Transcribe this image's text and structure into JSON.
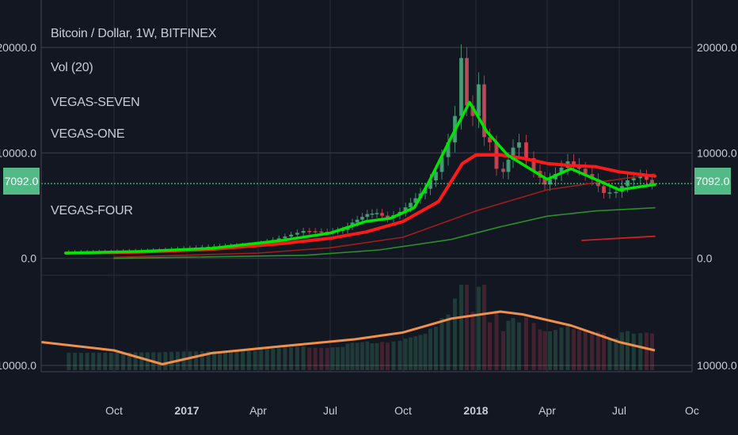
{
  "header": {
    "symbol": "Bitcoin / Dollar, 1W, BITFINEX",
    "indicators": [
      "Vol (20)",
      "VEGAS-SEVEN",
      "VEGAS-ONE",
      "VEGAS-FOUR"
    ]
  },
  "last_price_label": "7092.0",
  "colors": {
    "background": "#131722",
    "up": "#53b987",
    "down": "#eb4d5c",
    "ema_green": "#00e600",
    "ema_red": "#ff1a1a",
    "vol_ma": "#f0904a"
  },
  "chart_data": [
    {
      "type": "candlestick",
      "title": "Bitcoin / Dollar, 1W, BITFINEX",
      "y_tick_labels": [
        "20000.0",
        "10000.0",
        "0.0"
      ],
      "y_ticks": [
        20000,
        10000,
        0
      ],
      "ylim": [
        -1000,
        21500
      ],
      "x_tick_labels": [
        "Oct",
        "2017",
        "Apr",
        "Jul",
        "Oct",
        "2018",
        "Apr",
        "Jul",
        "Oc"
      ],
      "x_ticks": [
        "2016-10-01",
        "2017-01-01",
        "2017-04-01",
        "2017-07-01",
        "2017-10-01",
        "2018-01-01",
        "2018-04-01",
        "2018-07-01",
        "2018-10-01"
      ],
      "xlim": [
        "2016-07-01",
        "2018-10-01"
      ],
      "last_price": 7092,
      "close_series": {
        "x": [
          "2016-08-01",
          "2016-09-01",
          "2016-10-01",
          "2016-11-01",
          "2016-12-01",
          "2017-01-01",
          "2017-02-01",
          "2017-03-01",
          "2017-04-01",
          "2017-05-01",
          "2017-06-01",
          "2017-07-01",
          "2017-07-20",
          "2017-08-01",
          "2017-08-20",
          "2017-09-01",
          "2017-09-15",
          "2017-10-01",
          "2017-10-20",
          "2017-11-01",
          "2017-11-15",
          "2017-12-01",
          "2017-12-10",
          "2017-12-17",
          "2017-12-24",
          "2018-01-01",
          "2018-01-08",
          "2018-01-15",
          "2018-01-22",
          "2018-02-01",
          "2018-02-08",
          "2018-02-20",
          "2018-03-01",
          "2018-03-10",
          "2018-03-20",
          "2018-04-01",
          "2018-04-15",
          "2018-05-01",
          "2018-05-15",
          "2018-06-01",
          "2018-06-15",
          "2018-07-01",
          "2018-07-15",
          "2018-08-01",
          "2018-08-15"
        ],
        "values": [
          600,
          610,
          650,
          720,
          780,
          950,
          1100,
          1200,
          1300,
          1900,
          2600,
          2500,
          2700,
          3400,
          4200,
          4300,
          3800,
          4400,
          5700,
          6600,
          8200,
          11000,
          13500,
          19000,
          14500,
          13500,
          16500,
          11500,
          11000,
          8500,
          8200,
          10500,
          11000,
          9500,
          8300,
          7000,
          8000,
          9200,
          8500,
          7500,
          6200,
          6300,
          7400,
          7800,
          7100
        ]
      },
      "ema_green_fast": {
        "x": [
          "2016-08-01",
          "2016-11-01",
          "2017-02-01",
          "2017-05-01",
          "2017-07-01",
          "2017-08-15",
          "2017-09-15",
          "2017-10-15",
          "2017-11-01",
          "2017-12-01",
          "2017-12-24",
          "2018-01-15",
          "2018-02-10",
          "2018-03-10",
          "2018-04-01",
          "2018-05-01",
          "2018-06-01",
          "2018-07-01",
          "2018-08-15"
        ],
        "values": [
          500,
          650,
          950,
          1700,
          2400,
          3500,
          3800,
          4800,
          7000,
          11500,
          14800,
          12000,
          9800,
          8500,
          7500,
          8500,
          7500,
          6500,
          7000
        ]
      },
      "ema_red_fast": {
        "x": [
          "2016-08-01",
          "2016-11-01",
          "2017-02-01",
          "2017-05-01",
          "2017-07-01",
          "2017-08-15",
          "2017-10-01",
          "2017-11-15",
          "2017-12-15",
          "2018-01-01",
          "2018-02-01",
          "2018-03-01",
          "2018-04-01",
          "2018-05-01",
          "2018-06-01",
          "2018-07-01",
          "2018-08-15"
        ],
        "values": [
          500,
          600,
          850,
          1400,
          1900,
          2500,
          3500,
          5400,
          9000,
          9800,
          9800,
          9500,
          9000,
          8800,
          8700,
          8200,
          7800
        ]
      },
      "ema_red_slow": {
        "x": [
          "2016-10-01",
          "2017-04-01",
          "2017-07-01",
          "2017-10-01",
          "2018-01-01",
          "2018-04-01",
          "2018-08-15"
        ],
        "values": [
          100,
          500,
          1000,
          2000,
          4500,
          6500,
          8000
        ]
      },
      "ema_green_slow": {
        "x": [
          "2016-10-01",
          "2017-06-01",
          "2017-09-01",
          "2017-12-01",
          "2018-02-01",
          "2018-04-01",
          "2018-06-01",
          "2018-08-15"
        ],
        "values": [
          0,
          300,
          800,
          1800,
          3000,
          4000,
          4500,
          4800
        ]
      },
      "ema_red_short": {
        "x": [
          "2018-05-15",
          "2018-08-15"
        ],
        "values": [
          1700,
          2100
        ]
      }
    },
    {
      "type": "bar",
      "title": "Vol (20)",
      "y_tick_labels": [
        "10000.0"
      ],
      "vol_ma": {
        "x": [
          "2016-07-01",
          "2016-10-01",
          "2016-12-01",
          "2017-02-01",
          "2017-05-01",
          "2017-08-01",
          "2017-10-01",
          "2017-12-01",
          "2018-02-01",
          "2018-03-01",
          "2018-05-01",
          "2018-07-01",
          "2018-08-15"
        ],
        "values": [
          0.78,
          0.72,
          0.62,
          0.7,
          0.75,
          0.8,
          0.85,
          0.95,
          1.0,
          0.98,
          0.9,
          0.78,
          0.72
        ]
      }
    }
  ]
}
